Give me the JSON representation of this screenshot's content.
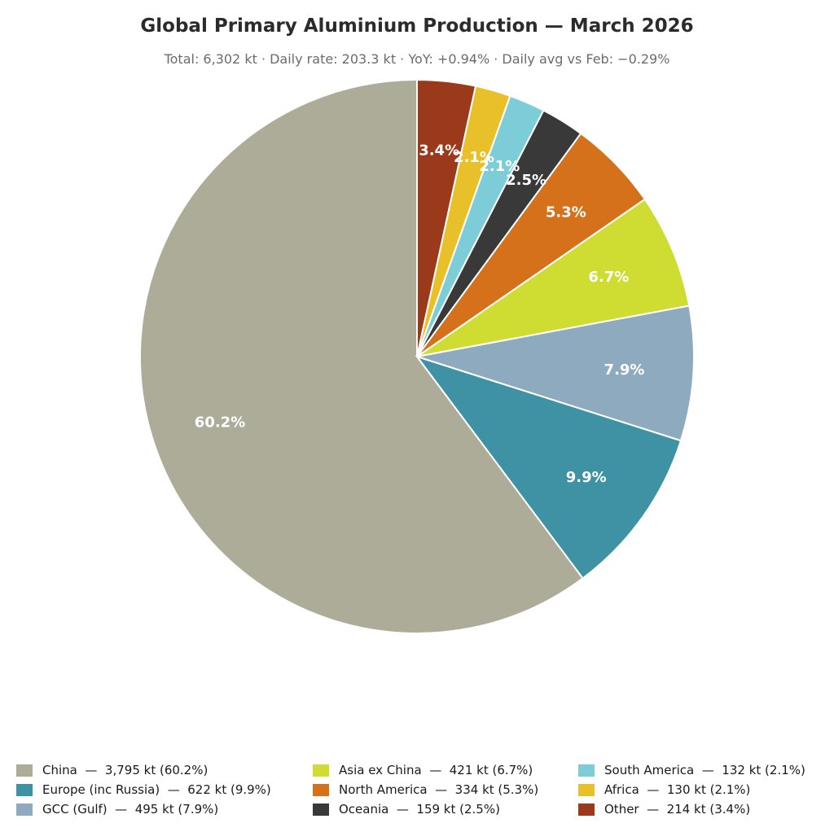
{
  "chart_data": {
    "type": "pie",
    "title": "Global Primary Aluminium Production — March 2026",
    "subtitle": "Total: 6,302 kt  ·  Daily rate: 203.3 kt  ·  YoY: +0.94%  ·  Daily avg vs Feb: −0.29%",
    "start_angle_deg": 90,
    "direction": "counterclockwise",
    "slices": [
      {
        "label": "China",
        "value": 3795,
        "pct_label": "60.2%",
        "legend": "China  —  3,795 kt (60.2%)",
        "color": "#adac99"
      },
      {
        "label": "Europe (inc Russia)",
        "value": 622,
        "pct_label": "9.9%",
        "legend": "Europe (inc Russia)  —  622 kt (9.9%)",
        "color": "#3e92a3"
      },
      {
        "label": "GCC (Gulf)",
        "value": 495,
        "pct_label": "7.9%",
        "legend": "GCC (Gulf)  —  495 kt (7.9%)",
        "color": "#8eaabe"
      },
      {
        "label": "Asia ex China",
        "value": 421,
        "pct_label": "6.7%",
        "legend": "Asia ex China  —  421 kt (6.7%)",
        "color": "#cfdd33"
      },
      {
        "label": "North America",
        "value": 334,
        "pct_label": "5.3%",
        "legend": "North America  —  334 kt (5.3%)",
        "color": "#d4711a"
      },
      {
        "label": "Oceania",
        "value": 159,
        "pct_label": "2.5%",
        "legend": "Oceania  —  159 kt (2.5%)",
        "color": "#393939"
      },
      {
        "label": "South America",
        "value": 132,
        "pct_label": "2.1%",
        "legend": "South America  —  132 kt (2.1%)",
        "color": "#7ccdd8"
      },
      {
        "label": "Africa",
        "value": 130,
        "pct_label": "2.1%",
        "legend": "Africa  —  130 kt (2.1%)",
        "color": "#e8c02a"
      },
      {
        "label": "Other",
        "value": 214,
        "pct_label": "3.4%",
        "legend": "Other  —  214 kt (3.4%)",
        "color": "#9a3a1a"
      }
    ],
    "legend_placement": "bottom"
  }
}
